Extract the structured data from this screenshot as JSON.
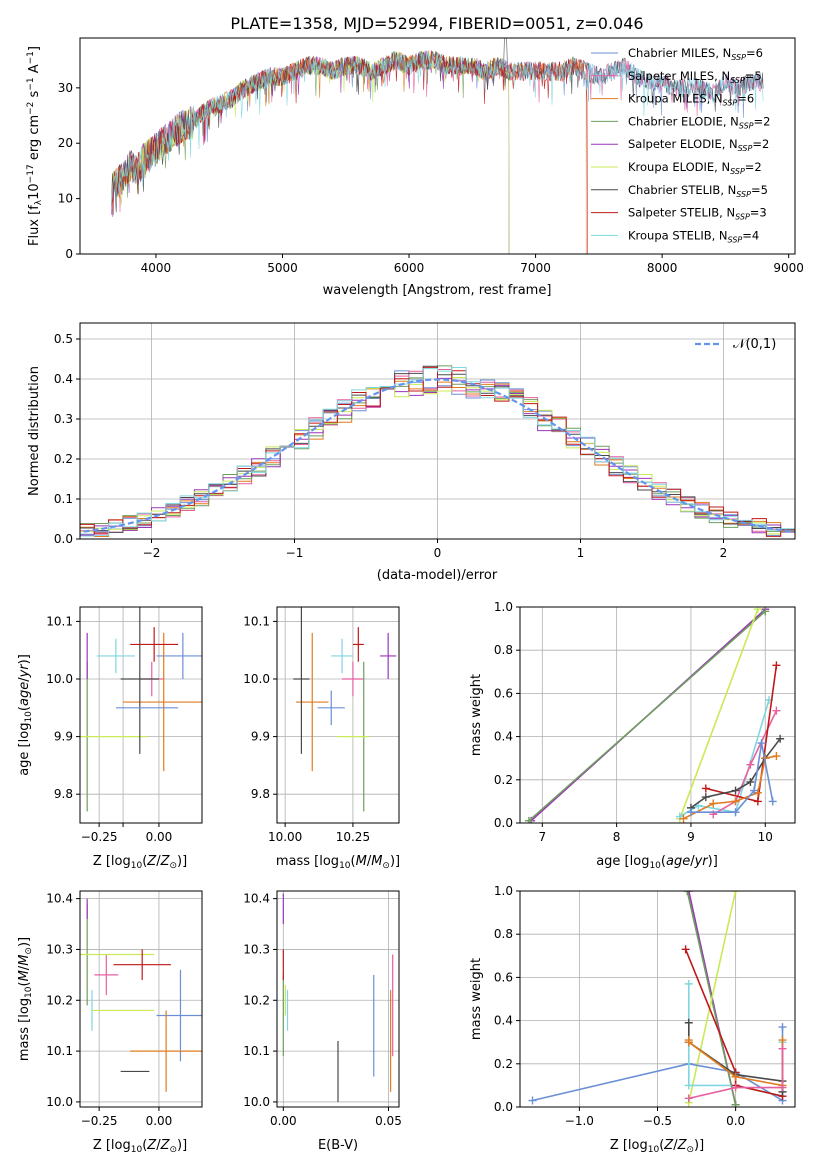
{
  "figure_title": "PLATE=1358, MJD=52994, FIBERID=0051, z=0.046",
  "colors": {
    "chabrier_miles": "#6a8fd6",
    "salpeter_miles": "#e85fa0",
    "kroupa_miles": "#e07b1f",
    "chabrier_elodie": "#6e9e5e",
    "salpeter_elodie": "#9b36b7",
    "kroupa_elodie": "#c9ea56",
    "chabrier_stelib": "#4a4a4a",
    "salpeter_stelib": "#c01818",
    "kroupa_stelib": "#7fd6e0",
    "gauss": "#6495ed"
  },
  "chart_data": [
    {
      "id": "spectrum",
      "type": "line",
      "xlabel": "wavelength [Angstrom, rest frame]",
      "ylabel": "Flux [f_λ10^-17 erg cm^-2 s^-1 A^-1]",
      "xlim": [
        3400,
        9050
      ],
      "ylim": [
        0,
        39
      ],
      "xticks": [
        4000,
        5000,
        6000,
        7000,
        8000,
        9000
      ],
      "yticks": [
        0,
        10,
        20,
        30
      ],
      "grid": false,
      "legend_position": "top-right",
      "x": [
        3650,
        3700,
        3750,
        3800,
        3850,
        3900,
        3950,
        4000,
        4100,
        4200,
        4300,
        4400,
        4500,
        4600,
        4700,
        4800,
        4900,
        5000,
        5100,
        5200,
        5300,
        5400,
        5500,
        5600,
        5700,
        5800,
        5900,
        6000,
        6100,
        6200,
        6300,
        6400,
        6500,
        6600,
        6700,
        6800,
        6900,
        7000,
        7100,
        7200,
        7300,
        7400,
        7500,
        7600,
        7700,
        7800,
        7900,
        8000,
        8100,
        8200,
        8300,
        8400,
        8500,
        8600,
        8700,
        8800
      ],
      "flux": [
        12,
        13,
        14,
        16,
        15,
        17,
        18,
        19,
        21,
        23,
        24,
        26,
        27,
        28,
        30,
        31,
        32,
        32,
        33,
        34,
        34,
        33,
        34,
        34,
        33,
        34,
        35,
        34,
        35,
        35,
        34,
        34,
        34,
        33,
        34,
        33,
        33,
        33,
        33,
        33,
        34,
        33,
        32,
        33,
        34,
        32,
        31,
        31,
        30,
        30,
        30,
        29,
        31,
        30,
        31,
        31
      ],
      "series": [
        {
          "name": "Chabrier MILES, N_SSP=6",
          "label": "Chabrier MILES, N",
          "sub": "SSP",
          "tail": "=6",
          "color_key": "chabrier_miles",
          "end": 8800
        },
        {
          "name": "Salpeter MILES, N_SSP=5",
          "label": "Salpeter MILES, N",
          "sub": "SSP",
          "tail": "=5",
          "color_key": "salpeter_miles",
          "end": 8800
        },
        {
          "name": "Kroupa MILES, N_SSP=6",
          "label": "Kroupa MILES, N",
          "sub": "SSP",
          "tail": "=6",
          "color_key": "kroupa_miles",
          "end": 7400
        },
        {
          "name": "Chabrier ELODIE, N_SSP=2",
          "label": "Chabrier ELODIE, N",
          "sub": "SSP",
          "tail": "=2",
          "color_key": "chabrier_elodie",
          "end": 6790
        },
        {
          "name": "Salpeter ELODIE, N_SSP=2",
          "label": "Salpeter ELODIE, N",
          "sub": "SSP",
          "tail": "=2",
          "color_key": "salpeter_elodie",
          "end": 6790
        },
        {
          "name": "Kroupa ELODIE, N_SSP=2",
          "label": "Kroupa ELODIE, N",
          "sub": "SSP",
          "tail": "=2",
          "color_key": "kroupa_elodie",
          "end": 6790
        },
        {
          "name": "Chabrier STELIB, N_SSP=5",
          "label": "Chabrier STELIB, N",
          "sub": "SSP",
          "tail": "=5",
          "color_key": "chabrier_stelib",
          "end": 8800
        },
        {
          "name": "Salpeter STELIB, N_SSP=3",
          "label": "Salpeter STELIB, N",
          "sub": "SSP",
          "tail": "=3",
          "color_key": "salpeter_stelib",
          "end": 7410
        },
        {
          "name": "Kroupa STELIB, N_SSP=4",
          "label": "Kroupa STELIB, N",
          "sub": "SSP",
          "tail": "=4",
          "color_key": "kroupa_stelib",
          "end": 8800
        }
      ]
    },
    {
      "id": "residuals",
      "type": "bar",
      "xlabel": "(data-model)/error",
      "ylabel": "Normed distribution",
      "xlim": [
        -2.5,
        2.5
      ],
      "ylim": [
        0,
        0.54
      ],
      "xticks": [
        -2,
        -1,
        0,
        1,
        2
      ],
      "yticks": [
        0.0,
        0.1,
        0.2,
        0.3,
        0.4,
        0.5
      ],
      "grid": true,
      "legend_position": "top-right",
      "gaussian_label": "𝒩(0,1)",
      "bin_width": 0.1
    },
    {
      "id": "age_vs_Z",
      "type": "scatter",
      "xlabel": "Z [log10(Z/Z⊙)]",
      "ylabel": "age [log10(age/yr)]",
      "xlim": [
        -0.33,
        0.18
      ],
      "ylim": [
        9.75,
        10.125
      ],
      "xticks": [
        -0.25,
        -0.15,
        0.0
      ],
      "xticklabels": [
        "−0.25",
        "",
        "0.00"
      ],
      "yticks": [
        9.8,
        9.9,
        10.0,
        10.1
      ],
      "grid": true,
      "points": [
        {
          "key": "chabrier_miles",
          "x": 0.1,
          "y": 10.04,
          "xerr": 0.11,
          "yerr": 0.04
        },
        {
          "key": "salpeter_miles",
          "x": -0.03,
          "y": 10.0,
          "xerr": 0.05,
          "yerr": 0.03
        },
        {
          "key": "kroupa_miles",
          "x": 0.02,
          "y": 9.96,
          "xerr": 0.17,
          "yerr": 0.12
        },
        {
          "key": "chabrier_elodie",
          "x": -0.3,
          "y": 9.9,
          "xerr": 0.0,
          "yerr": 0.13
        },
        {
          "key": "salpeter_elodie",
          "x": -0.3,
          "y": 10.04,
          "xerr": 0.0,
          "yerr": 0.04
        },
        {
          "key": "kroupa_elodie",
          "x": -0.2,
          "y": 9.9,
          "xerr": 0.15,
          "yerr": 0.0
        },
        {
          "key": "chabrier_stelib",
          "x": -0.08,
          "y": 10.0,
          "xerr": 0.08,
          "yerr": 0.13
        },
        {
          "key": "salpeter_stelib",
          "x": -0.02,
          "y": 10.06,
          "xerr": 0.1,
          "yerr": 0.03
        },
        {
          "key": "kroupa_stelib",
          "x": -0.18,
          "y": 10.04,
          "xerr": 0.08,
          "yerr": 0.03
        },
        {
          "key": "chabrier_miles",
          "x": -0.05,
          "y": 9.95,
          "xerr": 0.13,
          "yerr": 0.0
        }
      ]
    },
    {
      "id": "age_vs_mass",
      "type": "scatter",
      "xlabel": "mass [log10(M/M⊙)]",
      "ylabel": "",
      "xlim": [
        9.97,
        10.42
      ],
      "ylim": [
        9.75,
        10.125
      ],
      "xticks": [
        10.0,
        10.25
      ],
      "yticks": [
        9.8,
        9.9,
        10.0,
        10.1
      ],
      "grid": true,
      "points": [
        {
          "key": "chabrier_miles",
          "x": 10.17,
          "y": 9.95,
          "xerr": 0.05,
          "yerr": 0.03
        },
        {
          "key": "salpeter_miles",
          "x": 10.25,
          "y": 10.0,
          "xerr": 0.04,
          "yerr": 0.03
        },
        {
          "key": "kroupa_miles",
          "x": 10.1,
          "y": 9.96,
          "xerr": 0.06,
          "yerr": 0.12
        },
        {
          "key": "chabrier_elodie",
          "x": 10.29,
          "y": 9.9,
          "xerr": 0.0,
          "yerr": 0.13
        },
        {
          "key": "salpeter_elodie",
          "x": 10.38,
          "y": 10.04,
          "xerr": 0.03,
          "yerr": 0.04
        },
        {
          "key": "kroupa_elodie",
          "x": 10.25,
          "y": 9.9,
          "xerr": 0.06,
          "yerr": 0.0
        },
        {
          "key": "chabrier_stelib",
          "x": 10.06,
          "y": 10.0,
          "xerr": 0.03,
          "yerr": 0.13
        },
        {
          "key": "salpeter_stelib",
          "x": 10.27,
          "y": 10.06,
          "xerr": 0.02,
          "yerr": 0.03
        },
        {
          "key": "kroupa_stelib",
          "x": 10.21,
          "y": 10.04,
          "xerr": 0.04,
          "yerr": 0.03
        }
      ]
    },
    {
      "id": "weight_vs_age",
      "type": "line",
      "xlabel": "age [log10(age/yr)]",
      "ylabel": "mass weight",
      "xlim": [
        6.7,
        10.4
      ],
      "ylim": [
        0,
        1.0
      ],
      "xticks": [
        7,
        8,
        9,
        10
      ],
      "yticks": [
        0.0,
        0.2,
        0.4,
        0.6,
        0.8,
        1.0
      ],
      "grid": true,
      "series": [
        {
          "key": "salpeter_elodie",
          "x": [
            10.0,
            6.85
          ],
          "y": [
            0.99,
            0.01
          ]
        },
        {
          "key": "chabrier_elodie",
          "x": [
            10.0,
            6.82
          ],
          "y": [
            0.98,
            0.01
          ]
        },
        {
          "key": "kroupa_elodie",
          "x": [
            8.85,
            9.9
          ],
          "y": [
            0.02,
            0.99
          ]
        },
        {
          "key": "kroupa_stelib",
          "x": [
            8.85,
            9.1,
            9.6,
            10.05
          ],
          "y": [
            0.03,
            0.08,
            0.05,
            0.57
          ]
        },
        {
          "key": "salpeter_miles",
          "x": [
            9.3,
            9.6,
            9.8,
            10.15
          ],
          "y": [
            0.04,
            0.1,
            0.27,
            0.52
          ]
        },
        {
          "key": "salpeter_stelib",
          "x": [
            9.2,
            9.9,
            10.15
          ],
          "y": [
            0.16,
            0.1,
            0.73
          ]
        },
        {
          "key": "chabrier_stelib",
          "x": [
            9.0,
            9.2,
            9.6,
            9.8,
            10.0,
            10.2
          ],
          "y": [
            0.07,
            0.12,
            0.15,
            0.19,
            0.3,
            0.39
          ]
        },
        {
          "key": "kroupa_miles",
          "x": [
            8.9,
            9.3,
            9.6,
            9.9,
            10.0,
            10.15
          ],
          "y": [
            0.02,
            0.09,
            0.1,
            0.14,
            0.3,
            0.31
          ]
        },
        {
          "key": "chabrier_miles",
          "x": [
            9.0,
            9.6,
            9.85,
            9.95,
            10.1
          ],
          "y": [
            0.05,
            0.05,
            0.15,
            0.37,
            0.1
          ]
        }
      ]
    },
    {
      "id": "mass_vs_Z",
      "type": "scatter",
      "xlabel": "Z [log10(Z/Z⊙)]",
      "ylabel": "mass [log10(M/M⊙)]",
      "xlim": [
        -0.33,
        0.18
      ],
      "ylim": [
        9.99,
        10.415
      ],
      "xticks": [
        -0.25,
        0.0
      ],
      "xticklabels": [
        "−0.25",
        "0.00"
      ],
      "yticks": [
        10.0,
        10.1,
        10.2,
        10.3,
        10.4
      ],
      "grid": true,
      "points": [
        {
          "key": "chabrier_miles",
          "x": 0.09,
          "y": 10.17,
          "xerr": 0.1,
          "yerr": 0.09
        },
        {
          "key": "salpeter_miles",
          "x": -0.22,
          "y": 10.25,
          "xerr": 0.05,
          "yerr": 0.04
        },
        {
          "key": "kroupa_miles",
          "x": 0.03,
          "y": 10.1,
          "xerr": 0.15,
          "yerr": 0.08
        },
        {
          "key": "chabrier_elodie",
          "x": -0.3,
          "y": 10.29,
          "xerr": 0.0,
          "yerr": 0.1
        },
        {
          "key": "salpeter_elodie",
          "x": -0.3,
          "y": 10.38,
          "xerr": 0.0,
          "yerr": 0.02
        },
        {
          "key": "kroupa_elodie",
          "x": -0.2,
          "y": 10.29,
          "xerr": 0.18,
          "yerr": 0.0
        },
        {
          "key": "chabrier_stelib",
          "x": -0.1,
          "y": 10.06,
          "xerr": 0.06,
          "yerr": 0.0
        },
        {
          "key": "salpeter_stelib",
          "x": -0.07,
          "y": 10.27,
          "xerr": 0.12,
          "yerr": 0.03
        },
        {
          "key": "kroupa_stelib",
          "x": -0.28,
          "y": 10.18,
          "xerr": 0.0,
          "yerr": 0.04
        },
        {
          "key": "kroupa_elodie",
          "x": -0.15,
          "y": 10.18,
          "xerr": 0.13,
          "yerr": 0.0
        }
      ]
    },
    {
      "id": "mass_vs_ebv",
      "type": "scatter",
      "xlabel": "E(B-V)",
      "ylabel": "",
      "xlim": [
        -0.003,
        0.055
      ],
      "ylim": [
        9.99,
        10.415
      ],
      "xticks": [
        0.0,
        0.05
      ],
      "xticklabels": [
        "0.00",
        "0.05"
      ],
      "yticks": [
        10.0,
        10.1,
        10.2,
        10.3,
        10.4
      ],
      "grid": true,
      "points": [
        {
          "key": "chabrier_miles",
          "x": 0.043,
          "y": 10.15,
          "xerr": 0,
          "yerr": 0.1
        },
        {
          "key": "salpeter_miles",
          "x": 0.052,
          "y": 10.19,
          "xerr": 0,
          "yerr": 0.1
        },
        {
          "key": "kroupa_miles",
          "x": 0.051,
          "y": 10.12,
          "xerr": 0,
          "yerr": 0.1
        },
        {
          "key": "chabrier_elodie",
          "x": 0.0,
          "y": 10.17,
          "xerr": 0,
          "yerr": 0.08
        },
        {
          "key": "salpeter_elodie",
          "x": 0.0,
          "y": 10.38,
          "xerr": 0,
          "yerr": 0.03
        },
        {
          "key": "kroupa_elodie",
          "x": 0.001,
          "y": 10.2,
          "xerr": 0,
          "yerr": 0.03
        },
        {
          "key": "chabrier_stelib",
          "x": 0.026,
          "y": 10.06,
          "xerr": 0,
          "yerr": 0.06
        },
        {
          "key": "salpeter_stelib",
          "x": 0.0,
          "y": 10.27,
          "xerr": 0,
          "yerr": 0.03
        },
        {
          "key": "kroupa_stelib",
          "x": 0.002,
          "y": 10.18,
          "xerr": 0,
          "yerr": 0.04
        }
      ]
    },
    {
      "id": "weight_vs_Z",
      "type": "line",
      "xlabel": "Z [log10(Z/Z⊙)]",
      "ylabel": "mass weight",
      "xlim": [
        -1.38,
        0.38
      ],
      "ylim": [
        0,
        1.0
      ],
      "xticks": [
        -1.0,
        -0.5,
        0.0
      ],
      "xticklabels": [
        "−1.0",
        "−0.5",
        "0.0"
      ],
      "yticks": [
        0.0,
        0.2,
        0.4,
        0.6,
        0.8,
        1.0
      ],
      "grid": true,
      "series": [
        {
          "key": "salpeter_elodie",
          "x": [
            -0.3,
            0.0
          ],
          "y": [
            1.0,
            0.01
          ]
        },
        {
          "key": "chabrier_elodie",
          "x": [
            -0.31,
            0.0
          ],
          "y": [
            1.0,
            0.01
          ]
        },
        {
          "key": "kroupa_elodie",
          "x": [
            -0.3,
            0.0
          ],
          "y": [
            0.02,
            1.0
          ]
        },
        {
          "key": "chabrier_miles",
          "x": [
            -1.3,
            -0.3,
            0.0,
            0.3,
            0.3
          ],
          "y": [
            0.03,
            0.2,
            0.16,
            0.03,
            0.37
          ]
        },
        {
          "key": "kroupa_stelib",
          "x": [
            -0.3,
            -0.3,
            0.0,
            0.3,
            0.3
          ],
          "y": [
            0.57,
            0.1,
            0.1,
            0.05,
            0.3
          ]
        },
        {
          "key": "salpeter_stelib",
          "x": [
            -0.32,
            0.0,
            0.0,
            0.3
          ],
          "y": [
            0.73,
            0.16,
            0.1,
            0.05
          ]
        },
        {
          "key": "chabrier_stelib",
          "x": [
            -0.3,
            -0.3,
            0.0,
            0.3,
            0.3
          ],
          "y": [
            0.39,
            0.3,
            0.15,
            0.12,
            0.07
          ]
        },
        {
          "key": "kroupa_miles",
          "x": [
            -0.3,
            -0.3,
            0.0,
            0.3,
            0.3
          ],
          "y": [
            0.31,
            0.3,
            0.14,
            0.1,
            0.31
          ]
        },
        {
          "key": "salpeter_miles",
          "x": [
            -0.3,
            0.0,
            0.3,
            0.3
          ],
          "y": [
            0.04,
            0.09,
            0.09,
            0.27
          ]
        }
      ]
    }
  ]
}
